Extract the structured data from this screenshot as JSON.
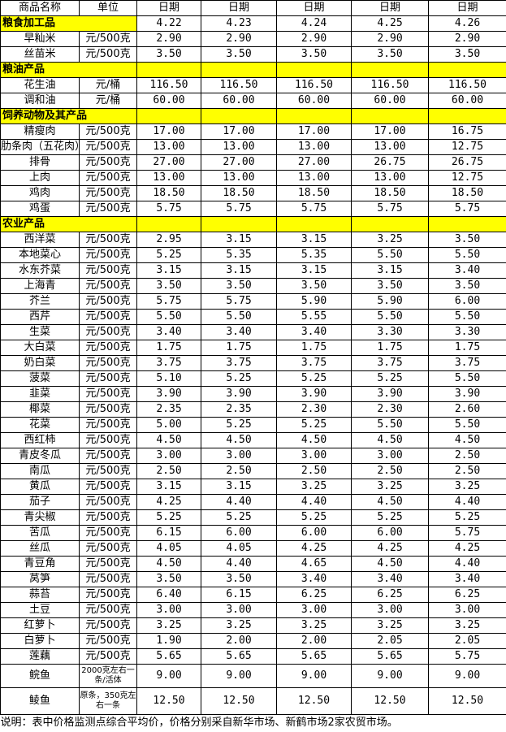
{
  "header": {
    "name": "商品名称",
    "unit": "单位",
    "dates": [
      "日期",
      "日期",
      "日期",
      "日期",
      "日期"
    ]
  },
  "sections": [
    {
      "title": "粮食加工品",
      "dates": [
        "4.22",
        "4.23",
        "4.24",
        "4.25",
        "4.26"
      ],
      "rows": [
        {
          "name": "早籼米",
          "unit": "元/500克",
          "prices": [
            "2.90",
            "2.90",
            "2.90",
            "2.90",
            "2.90"
          ]
        },
        {
          "name": "丝苗米",
          "unit": "元/500克",
          "prices": [
            "3.50",
            "3.50",
            "3.50",
            "3.50",
            "3.50"
          ]
        }
      ]
    },
    {
      "title": "粮油产品",
      "rows": [
        {
          "name": "花生油",
          "unit": "元/桶",
          "prices": [
            "116.50",
            "116.50",
            "116.50",
            "116.50",
            "116.50"
          ]
        },
        {
          "name": "调和油",
          "unit": "元/桶",
          "prices": [
            "60.00",
            "60.00",
            "60.00",
            "60.00",
            "60.00"
          ]
        }
      ]
    },
    {
      "title": "饲养动物及其产品",
      "rows": [
        {
          "name": "精瘦肉",
          "unit": "元/500克",
          "prices": [
            "17.00",
            "17.00",
            "17.00",
            "17.00",
            "16.75"
          ]
        },
        {
          "name": "肋条肉（五花肉）",
          "unit": "元/500克",
          "prices": [
            "13.00",
            "13.00",
            "13.00",
            "13.00",
            "12.75"
          ]
        },
        {
          "name": "排骨",
          "unit": "元/500克",
          "prices": [
            "27.00",
            "27.00",
            "27.00",
            "26.75",
            "26.75"
          ]
        },
        {
          "name": "上肉",
          "unit": "元/500克",
          "prices": [
            "13.00",
            "13.00",
            "13.00",
            "13.00",
            "12.75"
          ]
        },
        {
          "name": "鸡肉",
          "unit": "元/500克",
          "prices": [
            "18.50",
            "18.50",
            "18.50",
            "18.50",
            "18.50"
          ]
        },
        {
          "name": "鸡蛋",
          "unit": "元/500克",
          "prices": [
            "5.75",
            "5.75",
            "5.75",
            "5.75",
            "5.75"
          ]
        }
      ]
    },
    {
      "title": "农业产品",
      "rows": [
        {
          "name": "西洋菜",
          "unit": "元/500克",
          "prices": [
            "2.95",
            "3.15",
            "3.15",
            "3.25",
            "3.50"
          ]
        },
        {
          "name": "本地菜心",
          "unit": "元/500克",
          "prices": [
            "5.25",
            "5.35",
            "5.35",
            "5.50",
            "5.50"
          ]
        },
        {
          "name": "水东芥菜",
          "unit": "元/500克",
          "prices": [
            "3.15",
            "3.15",
            "3.15",
            "3.15",
            "3.40"
          ]
        },
        {
          "name": "上海青",
          "unit": "元/500克",
          "prices": [
            "3.50",
            "3.50",
            "3.50",
            "3.50",
            "3.50"
          ]
        },
        {
          "name": "芥兰",
          "unit": "元/500克",
          "prices": [
            "5.75",
            "5.75",
            "5.90",
            "5.90",
            "6.00"
          ]
        },
        {
          "name": "西芹",
          "unit": "元/500克",
          "prices": [
            "5.50",
            "5.50",
            "5.55",
            "5.50",
            "5.50"
          ]
        },
        {
          "name": "生菜",
          "unit": "元/500克",
          "prices": [
            "3.40",
            "3.40",
            "3.40",
            "3.30",
            "3.30"
          ]
        },
        {
          "name": "大白菜",
          "unit": "元/500克",
          "prices": [
            "1.75",
            "1.75",
            "1.75",
            "1.75",
            "1.75"
          ]
        },
        {
          "name": "奶白菜",
          "unit": "元/500克",
          "prices": [
            "3.75",
            "3.75",
            "3.75",
            "3.75",
            "3.75"
          ]
        },
        {
          "name": "菠菜",
          "unit": "元/500克",
          "prices": [
            "5.10",
            "5.25",
            "5.25",
            "5.25",
            "5.50"
          ]
        },
        {
          "name": "韭菜",
          "unit": "元/500克",
          "prices": [
            "3.90",
            "3.90",
            "3.90",
            "3.90",
            "3.90"
          ]
        },
        {
          "name": "椰菜",
          "unit": "元/500克",
          "prices": [
            "2.35",
            "2.35",
            "2.30",
            "2.30",
            "2.60"
          ]
        },
        {
          "name": "花菜",
          "unit": "元/500克",
          "prices": [
            "5.00",
            "5.25",
            "5.25",
            "5.50",
            "5.50"
          ]
        },
        {
          "name": "西红柿",
          "unit": "元/500克",
          "prices": [
            "4.50",
            "4.50",
            "4.50",
            "4.50",
            "4.50"
          ]
        },
        {
          "name": "青皮冬瓜",
          "unit": "元/500克",
          "prices": [
            "3.00",
            "3.00",
            "3.00",
            "3.00",
            "2.50"
          ]
        },
        {
          "name": "南瓜",
          "unit": "元/500克",
          "prices": [
            "2.50",
            "2.50",
            "2.50",
            "2.50",
            "2.50"
          ]
        },
        {
          "name": "黄瓜",
          "unit": "元/500克",
          "prices": [
            "3.15",
            "3.15",
            "3.25",
            "3.25",
            "3.25"
          ]
        },
        {
          "name": "茄子",
          "unit": "元/500克",
          "prices": [
            "4.25",
            "4.40",
            "4.40",
            "4.50",
            "4.40"
          ]
        },
        {
          "name": "青尖椒",
          "unit": "元/500克",
          "prices": [
            "5.25",
            "5.25",
            "5.25",
            "5.25",
            "5.25"
          ]
        },
        {
          "name": "苦瓜",
          "unit": "元/500克",
          "prices": [
            "6.15",
            "6.00",
            "6.00",
            "6.00",
            "5.75"
          ]
        },
        {
          "name": "丝瓜",
          "unit": "元/500克",
          "prices": [
            "4.05",
            "4.05",
            "4.25",
            "4.25",
            "4.25"
          ]
        },
        {
          "name": "青豆角",
          "unit": "元/500克",
          "prices": [
            "4.50",
            "4.40",
            "4.65",
            "4.50",
            "4.40"
          ]
        },
        {
          "name": "莴笋",
          "unit": "元/500克",
          "prices": [
            "3.50",
            "3.50",
            "3.40",
            "3.40",
            "3.40"
          ]
        },
        {
          "name": "蒜苔",
          "unit": "元/500克",
          "prices": [
            "6.40",
            "6.15",
            "6.25",
            "6.25",
            "6.25"
          ]
        },
        {
          "name": "土豆",
          "unit": "元/500克",
          "prices": [
            "3.00",
            "3.00",
            "3.00",
            "3.00",
            "3.00"
          ]
        },
        {
          "name": "红萝卜",
          "unit": "元/500克",
          "prices": [
            "3.25",
            "3.25",
            "3.25",
            "3.25",
            "3.25"
          ]
        },
        {
          "name": "白萝卜",
          "unit": "元/500克",
          "prices": [
            "1.90",
            "2.00",
            "2.00",
            "2.05",
            "2.05"
          ]
        },
        {
          "name": "莲藕",
          "unit": "元/500克",
          "prices": [
            "5.65",
            "5.65",
            "5.65",
            "5.65",
            "5.75"
          ]
        },
        {
          "name": "鲩鱼",
          "unit": "2000克左右一条/活体",
          "prices": [
            "9.00",
            "9.00",
            "9.00",
            "9.00",
            "9.00"
          ]
        },
        {
          "name": "鲮鱼",
          "unit": "原条，350克左右一条",
          "prices": [
            "12.50",
            "12.50",
            "12.50",
            "12.50",
            "12.50"
          ]
        }
      ]
    }
  ],
  "footer": "说明：表中价格监测点综合平均价，价格分别采自新华市场、新鹤市场2家农贸市场。"
}
